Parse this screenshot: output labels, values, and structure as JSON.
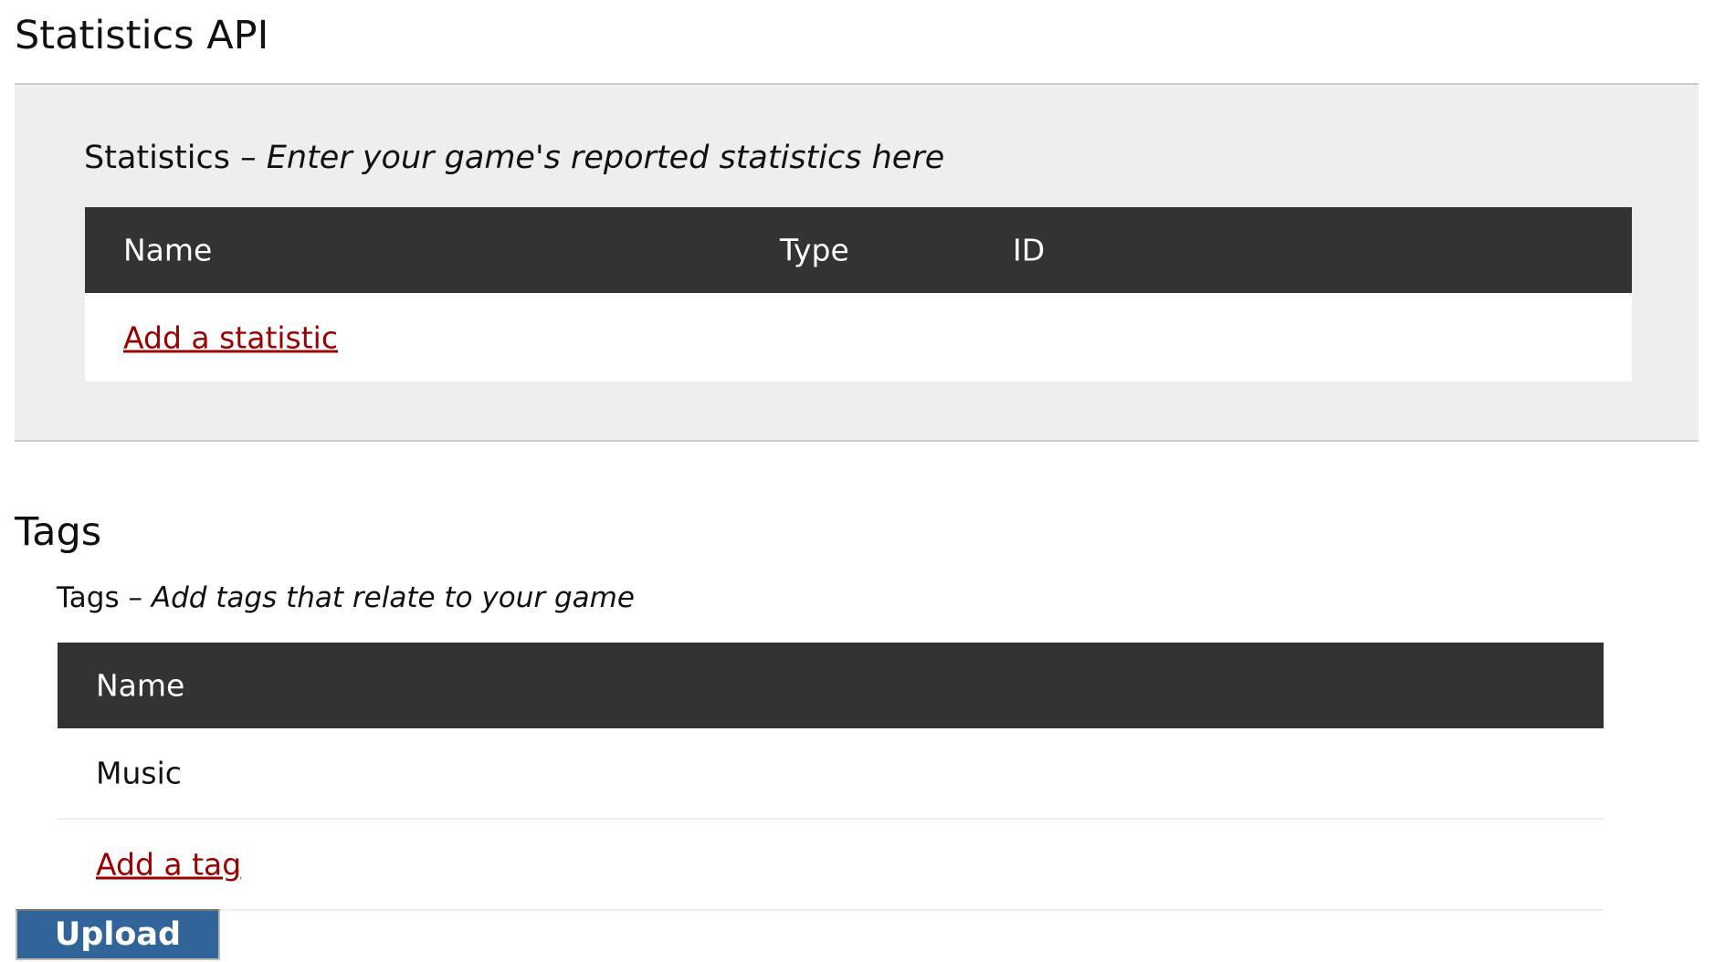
{
  "statistics_section": {
    "title": "Statistics API",
    "subtitle_label": "Statistics",
    "subtitle_separator": " – ",
    "subtitle_hint": "Enter your game's reported statistics here",
    "columns": [
      "Name",
      "Type",
      "ID"
    ],
    "add_link": "Add a statistic"
  },
  "tags_section": {
    "title": "Tags",
    "subtitle_label": "Tags",
    "subtitle_separator": " – ",
    "subtitle_hint": "Add tags that relate to your game",
    "columns": [
      "Name"
    ],
    "rows": [
      {
        "name": "Music"
      }
    ],
    "add_link": "Add a tag"
  },
  "upload_button": "Upload",
  "colors": {
    "link": "#990000",
    "table_header": "#333333",
    "button": "#31659a",
    "panel": "#eeeeee"
  }
}
